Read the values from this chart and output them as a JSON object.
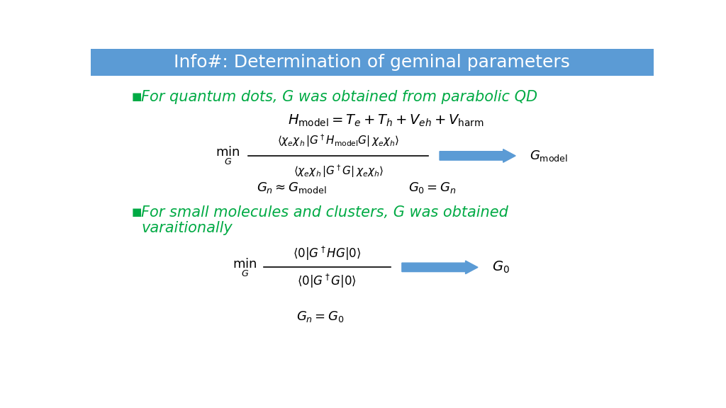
{
  "title": "Info#: Determination of geminal parameters",
  "title_bg_color": "#5b9bd5",
  "title_text_color": "#ffffff",
  "bg_color": "#ffffff",
  "bullet_color": "#00aa44",
  "math_color": "#000000",
  "bullet1": "For quantum dots, G was obtained from parabolic QD",
  "bullet2_line1": "For small molecules and clusters, G was obtained",
  "bullet2_line2": "varaitionally",
  "eq1": "$H_{\\mathrm{model}} = T_e + T_h + V_{eh} + V_{\\mathrm{harm}}$",
  "eq2_num": "$\\langle \\chi_e \\chi_h \\, | G^\\dagger H_{\\mathrm{model}} G | \\, \\chi_e \\chi_h \\rangle$",
  "eq2_den": "$\\langle \\chi_e \\chi_h \\, | G^\\dagger G | \\, \\chi_e \\chi_h \\rangle$",
  "eq2_prefix": "$\\min_{G}$",
  "eq2_result": "$G_{\\mathrm{model}}$",
  "eq3a": "$G_n \\approx G_{\\mathrm{model}}$",
  "eq3b": "$G_0 = G_n$",
  "eq4_num": "$\\langle 0 | G^\\dagger H G | 0 \\rangle$",
  "eq4_den": "$\\langle 0 | G^\\dagger G | 0 \\rangle$",
  "eq4_prefix": "$\\min_{G}$",
  "eq4_result": "$G_0$",
  "eq5": "$G_n = G_0$",
  "arrow_color": "#5b9bd5"
}
